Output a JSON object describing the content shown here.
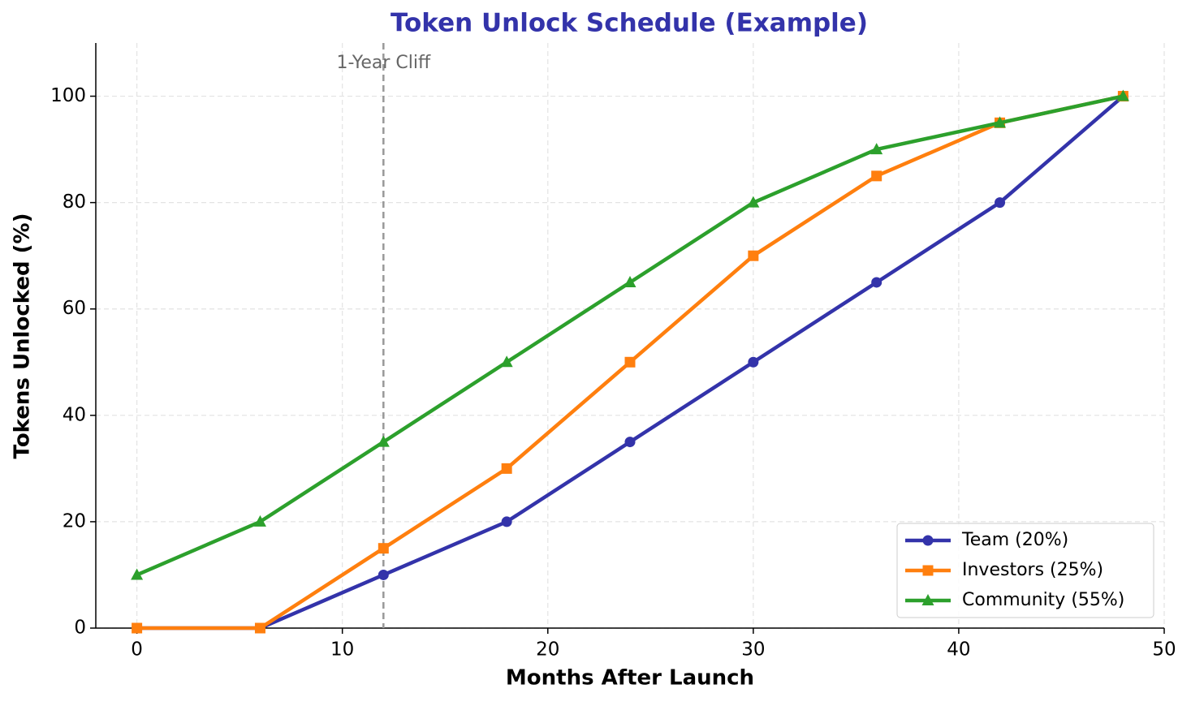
{
  "chart_data": {
    "type": "line",
    "title": "Token Unlock Schedule (Example)",
    "x_label": "Months After Launch",
    "y_label": "Tokens Unlocked (%)",
    "x": [
      0,
      6,
      12,
      18,
      24,
      30,
      36,
      42,
      48
    ],
    "series": [
      {
        "name": "Team (20%)",
        "color": "#3333aa",
        "marker": "circle",
        "values": [
          0,
          0,
          10,
          20,
          35,
          50,
          65,
          80,
          100
        ]
      },
      {
        "name": "Investors (25%)",
        "color": "#ff7f0e",
        "marker": "square",
        "values": [
          0,
          0,
          15,
          30,
          50,
          70,
          85,
          95,
          100
        ]
      },
      {
        "name": "Community (55%)",
        "color": "#2ca02c",
        "marker": "triangle",
        "values": [
          10,
          20,
          35,
          50,
          65,
          80,
          90,
          95,
          100
        ]
      }
    ],
    "xlim": [
      -2,
      50
    ],
    "xticks": [
      0,
      10,
      20,
      30,
      40,
      50
    ],
    "ylim": [
      0,
      110
    ],
    "yticks": [
      0,
      20,
      40,
      60,
      80,
      100
    ],
    "grid": true,
    "legend": "lower right",
    "vline": {
      "x": 12,
      "label": "1-Year Cliff"
    }
  }
}
